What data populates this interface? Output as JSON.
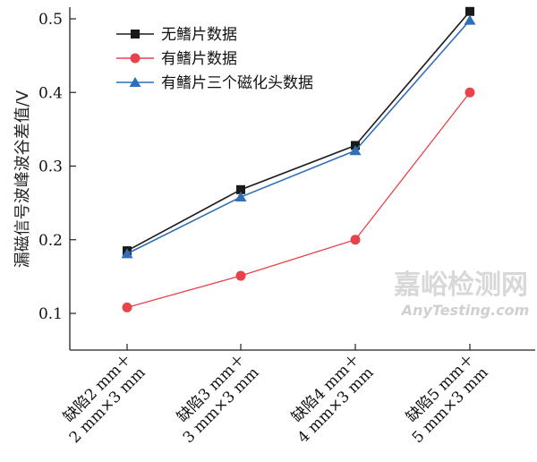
{
  "chart_data": {
    "type": "line",
    "title": "",
    "xlabel": "",
    "ylabel": "漏磁信号波峰波谷差值/V",
    "ylim": [
      0.05,
      0.515
    ],
    "yticks": [
      "0.1",
      "0.2",
      "0.3",
      "0.4",
      "0.5"
    ],
    "grid": false,
    "legend_position": "top-left",
    "categories": [
      [
        "缺陷2 mm＋",
        "2 mm×3 mm"
      ],
      [
        "缺陷3 mm＋",
        "3 mm×3 mm"
      ],
      [
        "缺陷4 mm＋",
        "4 mm×3 mm"
      ],
      [
        "缺陷5 mm＋",
        "5 mm×3 mm"
      ]
    ],
    "series": [
      {
        "name": "无鳍片数据",
        "color": "#1a1a1a",
        "marker": "square",
        "values": [
          0.185,
          0.268,
          0.328,
          0.51
        ]
      },
      {
        "name": "有鳍片数据",
        "color": "#e8434a",
        "marker": "circle",
        "values": [
          0.108,
          0.151,
          0.2,
          0.4
        ]
      },
      {
        "name": "有鳍片三个磁化头数据",
        "color": "#2f6fba",
        "marker": "triangle",
        "values": [
          0.181,
          0.258,
          0.321,
          0.498
        ]
      }
    ]
  },
  "watermark": {
    "line1": "嘉峪检测网",
    "line2": "AnyTesting.com"
  }
}
